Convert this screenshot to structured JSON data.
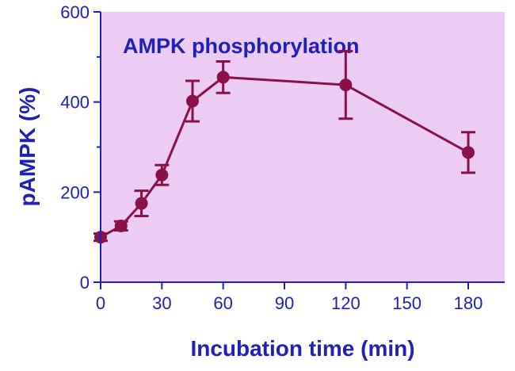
{
  "chart_data": {
    "type": "line",
    "title": "AMPK phosphorylation",
    "xlabel": "Incubation time (min)",
    "ylabel": "pAMPK (%)",
    "xlim": [
      0,
      195
    ],
    "ylim": [
      0,
      600
    ],
    "xticks": [
      0,
      30,
      60,
      90,
      120,
      150,
      180
    ],
    "xtick_labels": [
      "0",
      "30",
      "60",
      "90",
      "120",
      "150",
      "180"
    ],
    "yticks": [
      0,
      200,
      400,
      600
    ],
    "ytick_labels": [
      "0",
      "200",
      "400",
      "600"
    ],
    "grid": false,
    "legend": "none",
    "series": [
      {
        "x": [
          0,
          10,
          20,
          30,
          45,
          60,
          120,
          180
        ],
        "y": [
          100,
          125,
          175,
          238,
          402,
          455,
          438,
          288
        ],
        "error": [
          8,
          10,
          28,
          22,
          45,
          35,
          75,
          45
        ]
      }
    ],
    "colors": {
      "plot_background": "#eccbf4",
      "axis": "#2020b8",
      "text": "#2020b8",
      "series": "#8b1048"
    }
  }
}
